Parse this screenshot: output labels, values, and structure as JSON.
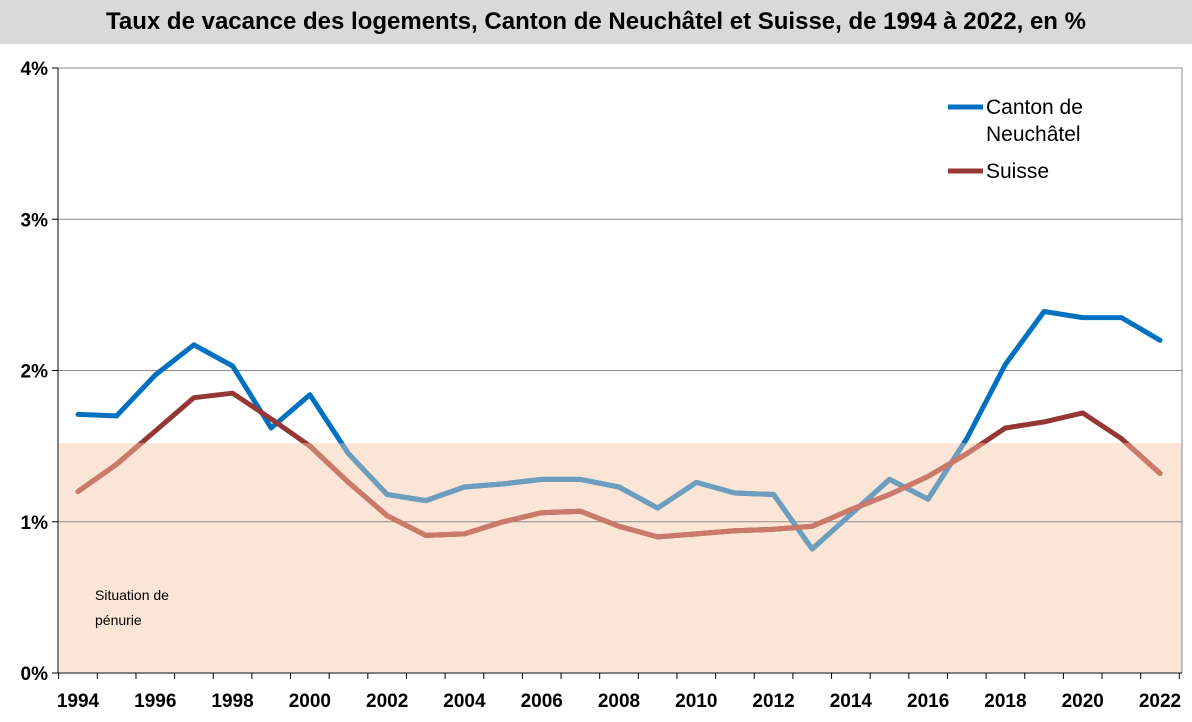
{
  "chart_data": {
    "type": "line",
    "title": "Taux de vacance des logements, Canton de Neuchâtel et Suisse, de 1994 à 2022, en %",
    "x": [
      1994,
      1995,
      1996,
      1997,
      1998,
      1999,
      2000,
      2001,
      2002,
      2003,
      2004,
      2005,
      2006,
      2007,
      2008,
      2009,
      2010,
      2011,
      2012,
      2013,
      2014,
      2015,
      2016,
      2017,
      2018,
      2019,
      2020,
      2021,
      2022
    ],
    "x_ticks": [
      "1994",
      "1996",
      "1998",
      "2000",
      "2002",
      "2004",
      "2006",
      "2008",
      "2010",
      "2012",
      "2014",
      "2016",
      "2018",
      "2020",
      "2022"
    ],
    "y_ticks": [
      "0%",
      "1%",
      "2%",
      "3%",
      "4%"
    ],
    "ylim": [
      0,
      4
    ],
    "grid": "horizontal",
    "legend_position": "top-right",
    "series": [
      {
        "name": "Canton de Neuchâtel",
        "legend_lines": [
          "Canton de",
          "Neuchâtel"
        ],
        "color": "#0070c0",
        "color_in_zone": "#6e9ebe",
        "values": [
          1.71,
          1.7,
          1.97,
          2.17,
          2.03,
          1.62,
          1.84,
          1.45,
          1.18,
          1.14,
          1.23,
          1.25,
          1.28,
          1.28,
          1.23,
          1.09,
          1.26,
          1.19,
          1.18,
          0.82,
          1.05,
          1.28,
          1.15,
          1.55,
          2.04,
          2.39,
          2.35,
          2.35,
          2.2
        ]
      },
      {
        "name": "Suisse",
        "legend_lines": [
          "Suisse"
        ],
        "color": "#953735",
        "color_in_zone": "#c97a6a",
        "values": [
          1.2,
          1.38,
          1.6,
          1.82,
          1.85,
          1.68,
          1.5,
          1.26,
          1.04,
          0.91,
          0.92,
          1.0,
          1.06,
          1.07,
          0.97,
          0.9,
          0.92,
          0.94,
          0.95,
          0.97,
          1.08,
          1.18,
          1.3,
          1.45,
          1.62,
          1.66,
          1.72,
          1.55,
          1.32
        ]
      }
    ],
    "shaded_zone": {
      "y_range": [
        0,
        1.52
      ],
      "color": "#fbe5d6",
      "label_lines": [
        "Situation de",
        "pénurie"
      ]
    }
  }
}
